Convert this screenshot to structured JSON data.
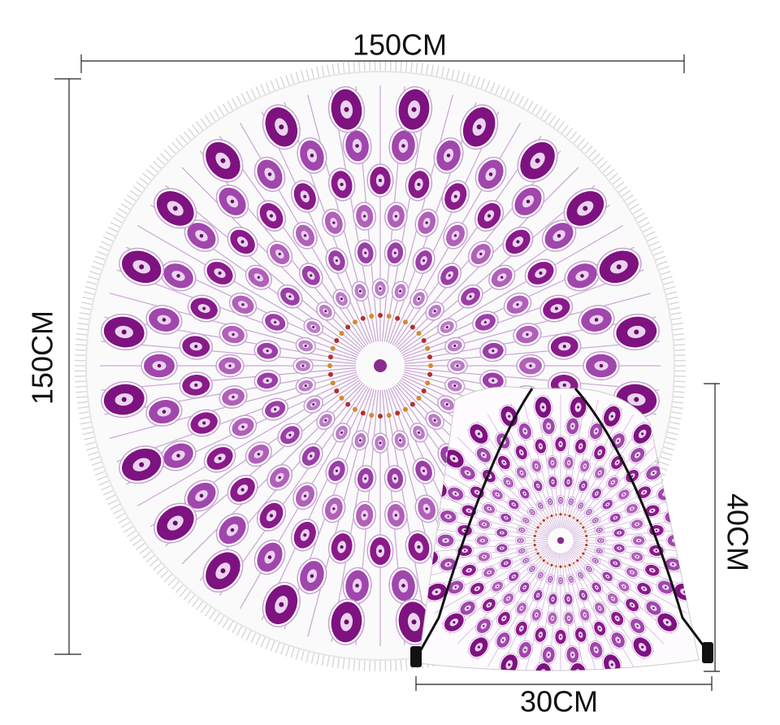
{
  "dimensions": {
    "towel_width": "150CM",
    "towel_height": "150CM",
    "bag_height": "40CM",
    "bag_width": "30CM"
  }
}
